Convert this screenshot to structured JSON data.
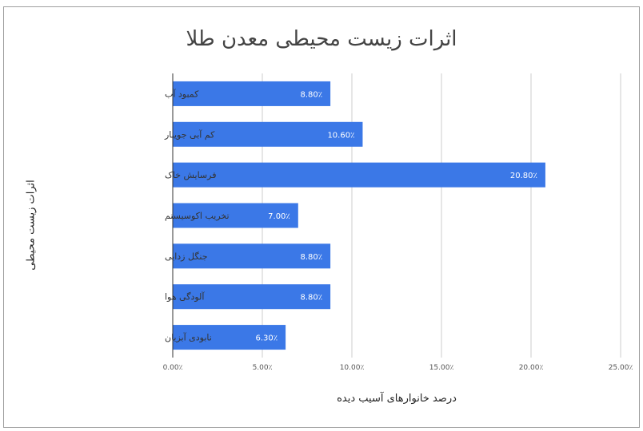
{
  "chart_data": {
    "type": "bar",
    "orientation": "horizontal",
    "title": "اثرات زیست محیطی معدن طلا",
    "xlabel": "درصد خانوارهای آسیب دیده",
    "ylabel": "اثرات زیست محیطی",
    "categories": [
      "کمبود آب",
      "کم آبی جویبار",
      "فرسایش خاک",
      "تخریب اکوسیستم",
      "جنگل زدایی",
      "آلودگی هوا",
      "نابودی آبزیان"
    ],
    "values": [
      8.8,
      10.6,
      20.8,
      7.0,
      8.8,
      8.8,
      6.3
    ],
    "value_labels": [
      "8.80٪",
      "10.60٪",
      "20.80٪",
      "7.00٪",
      "8.80٪",
      "8.80٪",
      "6.30٪"
    ],
    "xlim": [
      0,
      25
    ],
    "x_ticks": [
      0,
      5,
      10,
      15,
      20,
      25
    ],
    "x_tick_labels": [
      "0.00٪",
      "5.00٪",
      "10.00٪",
      "15.00٪",
      "20.00٪",
      "25.00٪"
    ],
    "grid": true,
    "bar_color": "#3b78e7"
  }
}
